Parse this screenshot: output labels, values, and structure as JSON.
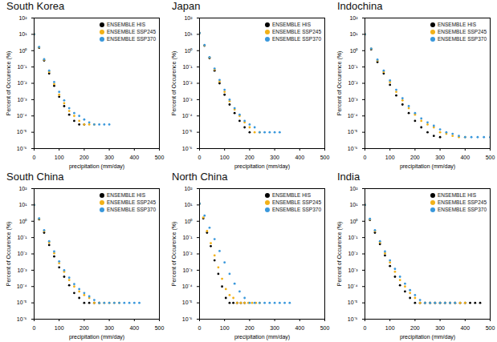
{
  "chart_data": [
    {
      "type": "scatter",
      "title": "South Korea",
      "x_label": "precipitation (mm/day)",
      "y_label": "Percent of Occurence (%)",
      "log": "y",
      "legend": "top-right",
      "xlim": [
        0,
        500
      ],
      "xticks": [
        0,
        100,
        200,
        300,
        400,
        500
      ],
      "ylim": [
        1e-06,
        100
      ],
      "yticks": [
        {
          "value": 1e-06,
          "label": "10⁻⁶"
        },
        {
          "value": 1e-05,
          "label": "10⁻⁵"
        },
        {
          "value": 0.0001,
          "label": "10⁻⁴"
        },
        {
          "value": 0.001,
          "label": "10⁻³"
        },
        {
          "value": 0.01,
          "label": "10⁻²"
        },
        {
          "value": 0.1,
          "label": "10⁻¹"
        },
        {
          "value": 1,
          "label": "10⁰"
        },
        {
          "value": 10,
          "label": "10¹"
        },
        {
          "value": 100,
          "label": "10²"
        }
      ],
      "series": [
        {
          "name": "ENSEMBLE HIS",
          "color": "#000000",
          "x": [
            0,
            20,
            40,
            60,
            80,
            100,
            120,
            140,
            160,
            180,
            200
          ],
          "values": [
            10,
            1.5,
            0.25,
            0.04,
            0.007,
            0.0015,
            0.0004,
            0.00012,
            5e-05,
            3e-05,
            3e-05
          ]
        },
        {
          "name": "ENSEMBLE SSP245",
          "color": "#f2b118",
          "x": [
            0,
            20,
            40,
            60,
            80,
            100,
            120,
            140,
            160,
            180,
            200,
            220,
            240
          ],
          "values": [
            10,
            1.6,
            0.28,
            0.05,
            0.009,
            0.002,
            0.0006,
            0.0002,
            0.0001,
            5e-05,
            3e-05,
            3e-05,
            3e-05
          ]
        },
        {
          "name": "ENSEMBLE SSP370",
          "color": "#3a98dc",
          "x": [
            0,
            20,
            40,
            60,
            80,
            100,
            120,
            140,
            160,
            180,
            200,
            220,
            240,
            260,
            280,
            300
          ],
          "values": [
            10,
            1.7,
            0.3,
            0.06,
            0.012,
            0.003,
            0.0009,
            0.0003,
            0.00015,
            0.0001,
            6e-05,
            4e-05,
            3e-05,
            3e-05,
            3e-05,
            3e-05
          ]
        }
      ]
    },
    {
      "type": "scatter",
      "title": "Japan",
      "x_label": "precipitation (mm/day)",
      "y_label": "Percent of Occurence (%)",
      "log": "y",
      "legend": "top-right",
      "xlim": [
        0,
        500
      ],
      "xticks": [
        0,
        100,
        200,
        300,
        400,
        500
      ],
      "ylim": [
        1e-06,
        100
      ],
      "yticks": [
        {
          "value": 1e-06,
          "label": "10⁻⁶"
        },
        {
          "value": 1e-05,
          "label": "10⁻⁵"
        },
        {
          "value": 0.0001,
          "label": "10⁻⁴"
        },
        {
          "value": 0.001,
          "label": "10⁻³"
        },
        {
          "value": 0.01,
          "label": "10⁻²"
        },
        {
          "value": 0.1,
          "label": "10⁻¹"
        },
        {
          "value": 1,
          "label": "10⁰"
        },
        {
          "value": 10,
          "label": "10¹"
        },
        {
          "value": 100,
          "label": "10²"
        }
      ],
      "series": [
        {
          "name": "ENSEMBLE HIS",
          "color": "#000000",
          "x": [
            0,
            20,
            40,
            60,
            80,
            100,
            120,
            140,
            160,
            180,
            200
          ],
          "values": [
            12,
            2,
            0.35,
            0.06,
            0.01,
            0.002,
            0.0005,
            0.00015,
            5e-05,
            2e-05,
            1e-05
          ]
        },
        {
          "name": "ENSEMBLE SSP245",
          "color": "#f2b118",
          "x": [
            0,
            20,
            40,
            60,
            80,
            100,
            120,
            140,
            160,
            180,
            200,
            220,
            240
          ],
          "values": [
            12,
            2.1,
            0.38,
            0.07,
            0.013,
            0.003,
            0.0008,
            0.00025,
            0.0001,
            4e-05,
            2e-05,
            1e-05,
            1e-05
          ]
        },
        {
          "name": "ENSEMBLE SSP370",
          "color": "#3a98dc",
          "x": [
            0,
            20,
            40,
            60,
            80,
            100,
            120,
            140,
            160,
            180,
            200,
            220,
            240,
            260,
            280,
            300,
            320
          ],
          "values": [
            12,
            2.2,
            0.4,
            0.08,
            0.016,
            0.004,
            0.001,
            0.0003,
            0.00012,
            5e-05,
            3e-05,
            2e-05,
            1e-05,
            1e-05,
            1e-05,
            1e-05,
            1e-05
          ]
        }
      ]
    },
    {
      "type": "scatter",
      "title": "Indochina",
      "x_label": "precipitation (mm/day)",
      "y_label": "Percent of Occurence (%)",
      "log": "y",
      "legend": "top-right",
      "xlim": [
        0,
        500
      ],
      "xticks": [
        0,
        100,
        200,
        300,
        400,
        500
      ],
      "ylim": [
        1e-06,
        100
      ],
      "yticks": [
        {
          "value": 1e-06,
          "label": "10⁻⁶"
        },
        {
          "value": 1e-05,
          "label": "10⁻⁵"
        },
        {
          "value": 0.0001,
          "label": "10⁻⁴"
        },
        {
          "value": 0.001,
          "label": "10⁻³"
        },
        {
          "value": 0.01,
          "label": "10⁻²"
        },
        {
          "value": 0.1,
          "label": "10⁻¹"
        },
        {
          "value": 1,
          "label": "10⁰"
        },
        {
          "value": 10,
          "label": "10¹"
        },
        {
          "value": 100,
          "label": "10²"
        }
      ],
      "series": [
        {
          "name": "ENSEMBLE HIS",
          "color": "#000000",
          "x": [
            0,
            25,
            50,
            75,
            100,
            125,
            150,
            175,
            200,
            225,
            250,
            275,
            300
          ],
          "values": [
            10,
            1.2,
            0.2,
            0.04,
            0.008,
            0.0018,
            0.0005,
            0.00015,
            5e-05,
            2e-05,
            1e-05,
            6e-06,
            5e-06
          ]
        },
        {
          "name": "ENSEMBLE SSP245",
          "color": "#f2b118",
          "x": [
            0,
            25,
            50,
            75,
            100,
            125,
            150,
            175,
            200,
            225,
            250,
            275,
            300,
            325,
            350,
            375,
            400
          ],
          "values": [
            10,
            1.3,
            0.25,
            0.05,
            0.012,
            0.003,
            0.0009,
            0.0003,
            0.00012,
            5e-05,
            3e-05,
            2e-05,
            1e-05,
            8e-06,
            6e-06,
            5e-06,
            5e-06
          ]
        },
        {
          "name": "ENSEMBLE SSP370",
          "color": "#3a98dc",
          "x": [
            0,
            25,
            50,
            75,
            100,
            125,
            150,
            175,
            200,
            225,
            250,
            275,
            300,
            325,
            350,
            375,
            400,
            425,
            450,
            475,
            500
          ],
          "values": [
            10,
            1.35,
            0.28,
            0.06,
            0.015,
            0.004,
            0.0012,
            0.0004,
            0.00015,
            7e-05,
            4e-05,
            2.5e-05,
            1.5e-05,
            1e-05,
            8e-06,
            6e-06,
            5e-06,
            5e-06,
            5e-06,
            5e-06,
            5e-06
          ]
        }
      ]
    },
    {
      "type": "scatter",
      "title": "South China",
      "x_label": "precipitation (mm/day)",
      "y_label": "Percent of Occurence (%)",
      "log": "y",
      "legend": "top-right",
      "xlim": [
        0,
        500
      ],
      "xticks": [
        0,
        100,
        200,
        300,
        400,
        500
      ],
      "ylim": [
        1e-06,
        100
      ],
      "yticks": [
        {
          "value": 1e-06,
          "label": "10⁻⁶"
        },
        {
          "value": 1e-05,
          "label": "10⁻⁵"
        },
        {
          "value": 0.0001,
          "label": "10⁻⁴"
        },
        {
          "value": 0.001,
          "label": "10⁻³"
        },
        {
          "value": 0.01,
          "label": "10⁻²"
        },
        {
          "value": 0.1,
          "label": "10⁻¹"
        },
        {
          "value": 1,
          "label": "10⁰"
        },
        {
          "value": 10,
          "label": "10¹"
        },
        {
          "value": 100,
          "label": "10²"
        }
      ],
      "series": [
        {
          "name": "ENSEMBLE HIS",
          "color": "#000000",
          "x": [
            0,
            20,
            40,
            60,
            80,
            100,
            120,
            140,
            160,
            180,
            200,
            220,
            240,
            260
          ],
          "values": [
            10,
            1.3,
            0.2,
            0.035,
            0.007,
            0.0015,
            0.0004,
            0.00012,
            4e-05,
            2e-05,
            1e-05,
            1e-05,
            1e-05,
            1e-05
          ]
        },
        {
          "name": "ENSEMBLE SSP245",
          "color": "#f2b118",
          "x": [
            0,
            20,
            40,
            60,
            80,
            100,
            120,
            140,
            160,
            180,
            200,
            220,
            240,
            260,
            280,
            300,
            320,
            340
          ],
          "values": [
            10,
            1.4,
            0.25,
            0.05,
            0.011,
            0.0027,
            0.0008,
            0.00025,
            0.0001,
            5e-05,
            3e-05,
            2e-05,
            1e-05,
            1e-05,
            1e-05,
            1e-05,
            1e-05,
            1e-05
          ]
        },
        {
          "name": "ENSEMBLE SSP370",
          "color": "#3a98dc",
          "x": [
            0,
            20,
            40,
            60,
            80,
            100,
            120,
            140,
            160,
            180,
            200,
            220,
            240,
            260,
            280,
            300,
            320,
            340,
            360,
            380,
            400,
            420
          ],
          "values": [
            10,
            1.5,
            0.28,
            0.06,
            0.014,
            0.0035,
            0.001,
            0.00035,
            0.00014,
            7e-05,
            4e-05,
            2.5e-05,
            1.5e-05,
            1e-05,
            1e-05,
            1e-05,
            1e-05,
            1e-05,
            1e-05,
            1e-05,
            1e-05,
            1e-05
          ]
        }
      ]
    },
    {
      "type": "scatter",
      "title": "North China",
      "x_label": "precipitation (mm/day)",
      "y_label": "Percent of Occurence (%)",
      "log": "y",
      "legend": "top-right",
      "xlim": [
        0,
        500
      ],
      "xticks": [
        0,
        100,
        200,
        300,
        400,
        500
      ],
      "ylim": [
        1e-06,
        100
      ],
      "yticks": [
        {
          "value": 1e-06,
          "label": "10⁻⁶"
        },
        {
          "value": 1e-05,
          "label": "10⁻⁵"
        },
        {
          "value": 0.0001,
          "label": "10⁻⁴"
        },
        {
          "value": 0.001,
          "label": "10⁻³"
        },
        {
          "value": 0.01,
          "label": "10⁻²"
        },
        {
          "value": 0.1,
          "label": "10⁻¹"
        },
        {
          "value": 1,
          "label": "10⁰"
        },
        {
          "value": 10,
          "label": "10¹"
        },
        {
          "value": 100,
          "label": "10²"
        }
      ],
      "series": [
        {
          "name": "ENSEMBLE HIS",
          "color": "#000000",
          "x": [
            0,
            15,
            30,
            45,
            60,
            75,
            90,
            105,
            120,
            135,
            150,
            165,
            180
          ],
          "values": [
            12,
            1.5,
            0.2,
            0.03,
            0.004,
            0.0006,
            0.0001,
            2e-05,
            1e-05,
            1e-05,
            1e-05,
            1e-05,
            1e-05
          ]
        },
        {
          "name": "ENSEMBLE SSP245",
          "color": "#f2b118",
          "x": [
            0,
            15,
            30,
            45,
            60,
            75,
            90,
            105,
            120,
            135,
            150,
            165,
            180,
            195,
            210,
            225,
            240
          ],
          "values": [
            12,
            1.7,
            0.25,
            0.045,
            0.008,
            0.0015,
            0.0003,
            7e-05,
            3e-05,
            2e-05,
            1e-05,
            1e-05,
            1e-05,
            1e-05,
            1e-05,
            1e-05,
            1e-05
          ]
        },
        {
          "name": "ENSEMBLE SSP370",
          "color": "#3a98dc",
          "x": [
            0,
            20,
            40,
            60,
            80,
            100,
            120,
            140,
            160,
            180,
            200,
            220,
            240,
            260,
            280,
            300,
            320,
            340,
            360
          ],
          "values": [
            12,
            2.2,
            0.4,
            0.08,
            0.015,
            0.003,
            0.0006,
            0.00015,
            5e-05,
            2e-05,
            1e-05,
            1e-05,
            1e-05,
            1e-05,
            1e-05,
            1e-05,
            1e-05,
            1e-05,
            1e-05
          ]
        }
      ]
    },
    {
      "type": "scatter",
      "title": "India",
      "x_label": "precipitation (mm/day)",
      "y_label": "Percent of Occurence (%)",
      "log": "y",
      "legend": "top-right",
      "xlim": [
        0,
        500
      ],
      "xticks": [
        0,
        100,
        200,
        300,
        400,
        500
      ],
      "ylim": [
        1e-06,
        100
      ],
      "yticks": [
        {
          "value": 1e-06,
          "label": "10⁻⁶"
        },
        {
          "value": 1e-05,
          "label": "10⁻⁵"
        },
        {
          "value": 0.0001,
          "label": "10⁻⁴"
        },
        {
          "value": 0.001,
          "label": "10⁻³"
        },
        {
          "value": 0.01,
          "label": "10⁻²"
        },
        {
          "value": 0.1,
          "label": "10⁻¹"
        },
        {
          "value": 1,
          "label": "10⁰"
        },
        {
          "value": 10,
          "label": "10¹"
        },
        {
          "value": 100,
          "label": "10²"
        }
      ],
      "series": [
        {
          "name": "ENSEMBLE HIS",
          "color": "#000000",
          "x": [
            0,
            20,
            40,
            60,
            80,
            100,
            120,
            140,
            160,
            180,
            200,
            220,
            240,
            260,
            280,
            300,
            320,
            340,
            360,
            380,
            400,
            420,
            440,
            460
          ],
          "values": [
            10,
            1.2,
            0.2,
            0.04,
            0.008,
            0.0018,
            0.0004,
            0.00012,
            5e-05,
            2e-05,
            1e-05,
            1e-05,
            1e-05,
            1e-05,
            1e-05,
            1e-05,
            1e-05,
            1e-05,
            1e-05,
            1e-05,
            1e-05,
            1e-05,
            1e-05,
            1e-05
          ]
        },
        {
          "name": "ENSEMBLE SSP245",
          "color": "#f2b118",
          "x": [
            0,
            20,
            40,
            60,
            80,
            100,
            120,
            140,
            160,
            180,
            200,
            220,
            240,
            260,
            280,
            300,
            320,
            340,
            360,
            380,
            400
          ],
          "values": [
            10,
            1.3,
            0.25,
            0.05,
            0.011,
            0.003,
            0.0008,
            0.00025,
            0.0001,
            4e-05,
            2e-05,
            1e-05,
            1e-05,
            1e-05,
            1e-05,
            1e-05,
            1e-05,
            1e-05,
            1e-05,
            1e-05,
            1e-05
          ]
        },
        {
          "name": "ENSEMBLE SSP370",
          "color": "#3a98dc",
          "x": [
            0,
            20,
            40,
            60,
            80,
            100,
            120,
            140,
            160,
            180,
            200,
            220,
            240,
            260,
            280,
            300,
            320,
            340,
            360
          ],
          "values": [
            10,
            1.4,
            0.28,
            0.06,
            0.014,
            0.004,
            0.0012,
            0.0004,
            0.00015,
            6e-05,
            3e-05,
            1.5e-05,
            1e-05,
            1e-05,
            1e-05,
            1e-05,
            1e-05,
            1e-05,
            1e-05
          ]
        }
      ]
    }
  ]
}
